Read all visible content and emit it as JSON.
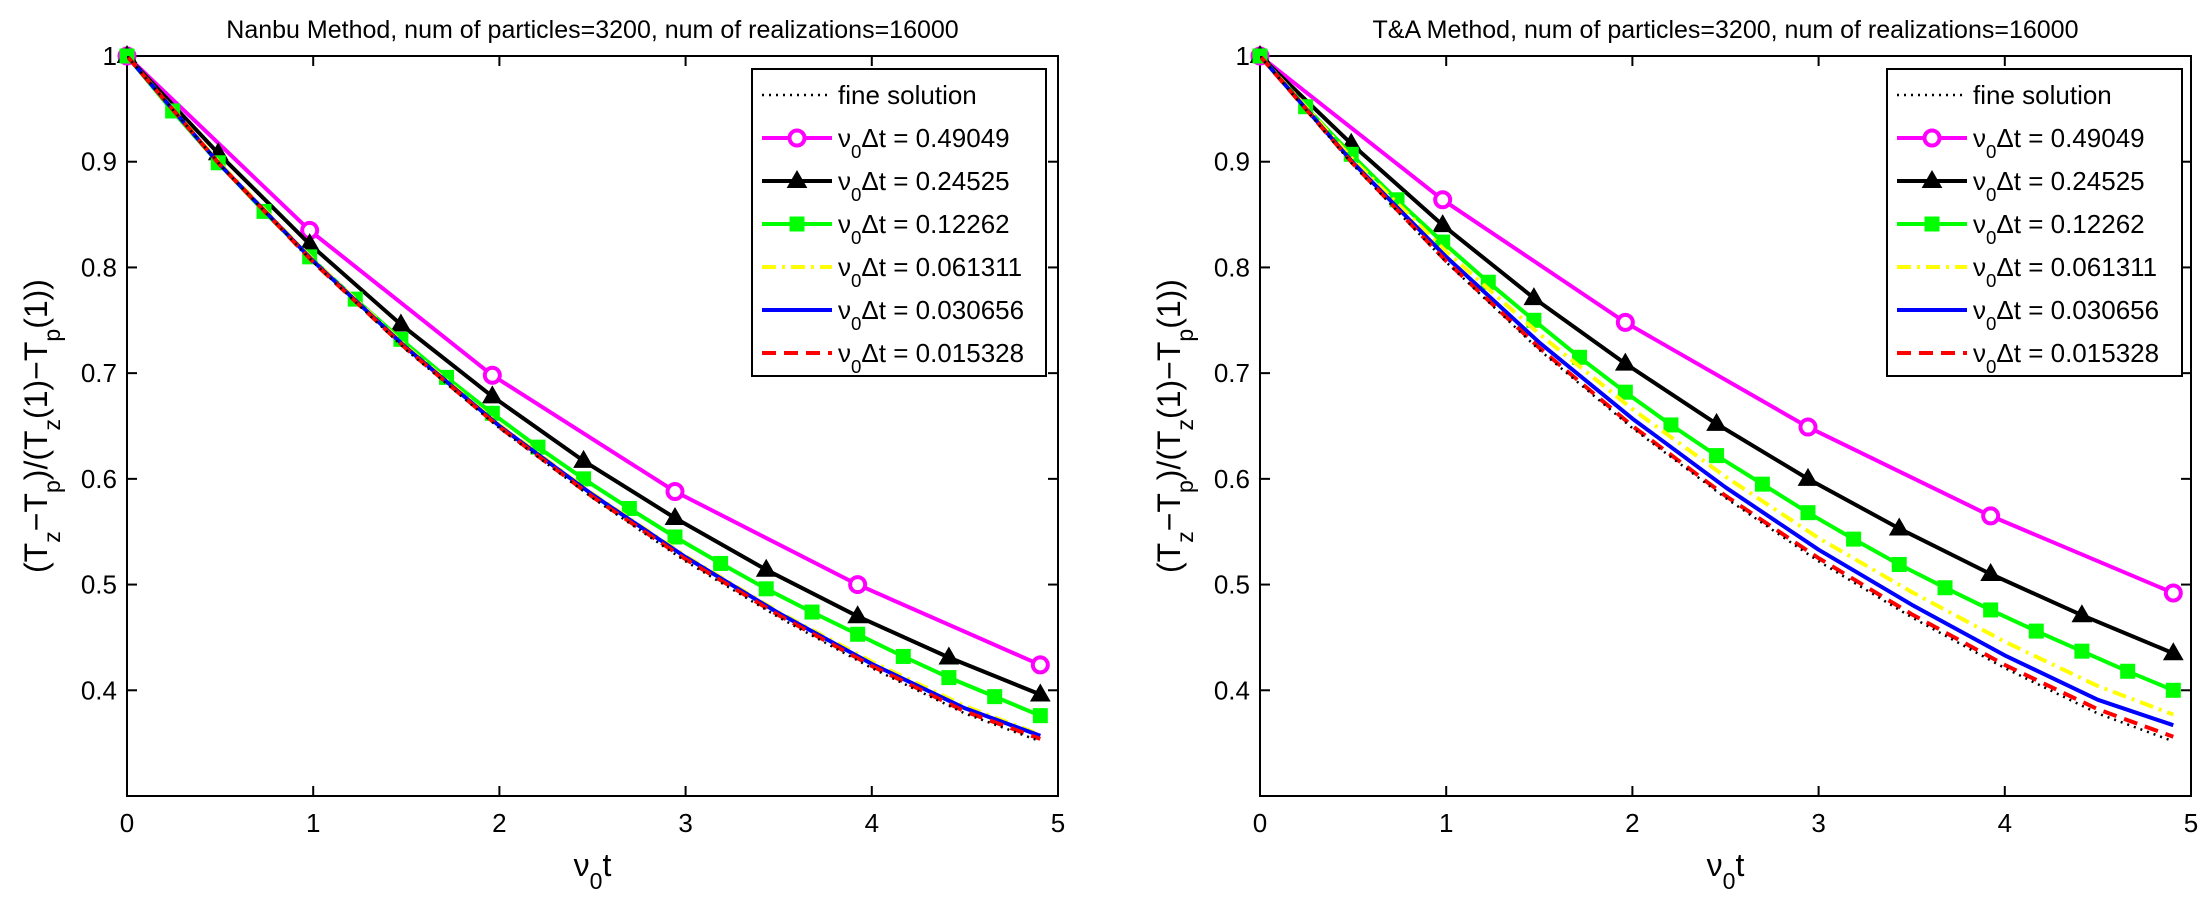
{
  "chart_data": [
    {
      "type": "line",
      "title": "Nanbu Method, num of particles=3200, num of realizations=16000",
      "xlabel": "ν0t",
      "ylabel": "(Tz−Tp)/(Tz(1)−Tp(1))",
      "xlim": [
        0,
        5
      ],
      "ylim": [
        0.3,
        1.0
      ],
      "xticks": [
        "0",
        "1",
        "2",
        "3",
        "4",
        "5"
      ],
      "yticks": [
        "0.4",
        "0.5",
        "0.6",
        "0.7",
        "0.8",
        "0.9",
        "1"
      ],
      "grid": false,
      "legend_position": "top-right",
      "series": [
        {
          "name": "fine solution",
          "color": "#000000",
          "dash": "dotted",
          "marker": "none",
          "x": [
            0,
            0.5,
            1,
            1.5,
            2,
            2.5,
            3,
            3.5,
            4,
            4.5,
            4.9
          ],
          "y": [
            1.0,
            0.897,
            0.805,
            0.722,
            0.648,
            0.582,
            0.522,
            0.469,
            0.421,
            0.378,
            0.352
          ]
        },
        {
          "name": "ν0Δt = 0.49049",
          "color": "#ff00ff",
          "dash": "solid",
          "marker": "circle",
          "x": [
            0,
            0.981,
            1.962,
            2.943,
            3.924,
            4.905
          ],
          "y": [
            1.0,
            0.835,
            0.698,
            0.588,
            0.5,
            0.424
          ]
        },
        {
          "name": "ν0Δt = 0.24525",
          "color": "#000000",
          "dash": "solid",
          "marker": "triangle",
          "x": [
            0,
            0.49,
            0.981,
            1.471,
            1.962,
            2.452,
            2.943,
            3.433,
            3.924,
            4.414,
            4.905
          ],
          "y": [
            1.0,
            0.908,
            0.822,
            0.746,
            0.678,
            0.617,
            0.563,
            0.514,
            0.47,
            0.431,
            0.396
          ]
        },
        {
          "name": "ν0Δt = 0.12262",
          "color": "#00ff00",
          "dash": "solid",
          "marker": "square",
          "x": [
            0,
            0.245,
            0.49,
            0.736,
            0.981,
            1.226,
            1.471,
            1.716,
            1.962,
            2.207,
            2.452,
            2.698,
            2.943,
            3.188,
            3.433,
            3.679,
            3.924,
            4.169,
            4.414,
            4.66,
            4.905
          ],
          "y": [
            1.0,
            0.948,
            0.899,
            0.853,
            0.81,
            0.77,
            0.732,
            0.696,
            0.662,
            0.63,
            0.6,
            0.572,
            0.545,
            0.52,
            0.496,
            0.474,
            0.453,
            0.432,
            0.412,
            0.394,
            0.376
          ]
        },
        {
          "name": "ν0Δt = 0.061311",
          "color": "#ffff00",
          "dash": "dashdot",
          "marker": "none",
          "x": [
            0,
            0.5,
            1,
            1.5,
            2,
            2.5,
            3,
            3.5,
            4,
            4.5,
            4.905
          ],
          "y": [
            1.0,
            0.898,
            0.807,
            0.725,
            0.651,
            0.586,
            0.527,
            0.474,
            0.427,
            0.385,
            0.358
          ]
        },
        {
          "name": "ν0Δt = 0.030656",
          "color": "#0000ff",
          "dash": "solid",
          "marker": "none",
          "x": [
            0,
            0.5,
            1,
            1.5,
            2,
            2.5,
            3,
            3.5,
            4,
            4.5,
            4.905
          ],
          "y": [
            1.0,
            0.897,
            0.806,
            0.724,
            0.65,
            0.585,
            0.526,
            0.473,
            0.425,
            0.383,
            0.357
          ]
        },
        {
          "name": "ν0Δt = 0.015328",
          "color": "#ff0000",
          "dash": "dashed",
          "marker": "none",
          "x": [
            0,
            0.5,
            1,
            1.5,
            2,
            2.5,
            3,
            3.5,
            4,
            4.5,
            4.905
          ],
          "y": [
            1.0,
            0.897,
            0.805,
            0.723,
            0.649,
            0.583,
            0.524,
            0.471,
            0.423,
            0.38,
            0.354
          ]
        }
      ]
    },
    {
      "type": "line",
      "title": "T&A Method, num of particles=3200, num of realizations=16000",
      "xlabel": "ν0t",
      "ylabel": "(Tz−Tp)/(Tz(1)−Tp(1))",
      "xlim": [
        0,
        5
      ],
      "ylim": [
        0.3,
        1.0
      ],
      "xticks": [
        "0",
        "1",
        "2",
        "3",
        "4",
        "5"
      ],
      "yticks": [
        "0.4",
        "0.5",
        "0.6",
        "0.7",
        "0.8",
        "0.9",
        "1"
      ],
      "grid": false,
      "legend_position": "top-right",
      "series": [
        {
          "name": "fine solution",
          "color": "#000000",
          "dash": "dotted",
          "marker": "none",
          "x": [
            0,
            0.5,
            1,
            1.5,
            2,
            2.5,
            3,
            3.5,
            4,
            4.5,
            4.9
          ],
          "y": [
            1.0,
            0.897,
            0.805,
            0.722,
            0.648,
            0.582,
            0.522,
            0.469,
            0.421,
            0.378,
            0.352
          ]
        },
        {
          "name": "ν0Δt = 0.49049",
          "color": "#ff00ff",
          "dash": "solid",
          "marker": "circle",
          "x": [
            0,
            0.981,
            1.962,
            2.943,
            3.924,
            4.905
          ],
          "y": [
            1.0,
            0.864,
            0.748,
            0.649,
            0.565,
            0.492
          ]
        },
        {
          "name": "ν0Δt = 0.24525",
          "color": "#000000",
          "dash": "solid",
          "marker": "triangle",
          "x": [
            0,
            0.49,
            0.981,
            1.471,
            1.962,
            2.452,
            2.943,
            3.433,
            3.924,
            4.414,
            4.905
          ],
          "y": [
            1.0,
            0.917,
            0.84,
            0.771,
            0.709,
            0.652,
            0.6,
            0.553,
            0.51,
            0.471,
            0.435
          ]
        },
        {
          "name": "ν0Δt = 0.12262",
          "color": "#00ff00",
          "dash": "solid",
          "marker": "square",
          "x": [
            0,
            0.245,
            0.49,
            0.736,
            0.981,
            1.226,
            1.471,
            1.716,
            1.962,
            2.207,
            2.452,
            2.698,
            2.943,
            3.188,
            3.433,
            3.679,
            3.924,
            4.169,
            4.414,
            4.66,
            4.905
          ],
          "y": [
            1.0,
            0.952,
            0.907,
            0.864,
            0.824,
            0.786,
            0.75,
            0.715,
            0.682,
            0.651,
            0.622,
            0.595,
            0.568,
            0.543,
            0.519,
            0.497,
            0.476,
            0.456,
            0.437,
            0.418,
            0.4
          ]
        },
        {
          "name": "ν0Δt = 0.061311",
          "color": "#ffff00",
          "dash": "dashdot",
          "marker": "none",
          "x": [
            0,
            0.5,
            1,
            1.5,
            2,
            2.5,
            3,
            3.5,
            4,
            4.5,
            4.905
          ],
          "y": [
            1.0,
            0.902,
            0.815,
            0.737,
            0.666,
            0.602,
            0.544,
            0.493,
            0.446,
            0.404,
            0.377
          ]
        },
        {
          "name": "ν0Δt = 0.030656",
          "color": "#0000ff",
          "dash": "solid",
          "marker": "none",
          "x": [
            0,
            0.5,
            1,
            1.5,
            2,
            2.5,
            3,
            3.5,
            4,
            4.5,
            4.905
          ],
          "y": [
            1.0,
            0.899,
            0.81,
            0.729,
            0.657,
            0.592,
            0.533,
            0.481,
            0.433,
            0.391,
            0.367
          ]
        },
        {
          "name": "ν0Δt = 0.015328",
          "color": "#ff0000",
          "dash": "dashed",
          "marker": "none",
          "x": [
            0,
            0.5,
            1,
            1.5,
            2,
            2.5,
            3,
            3.5,
            4,
            4.5,
            4.905
          ],
          "y": [
            1.0,
            0.898,
            0.806,
            0.724,
            0.65,
            0.584,
            0.525,
            0.472,
            0.424,
            0.382,
            0.356
          ]
        }
      ]
    }
  ]
}
